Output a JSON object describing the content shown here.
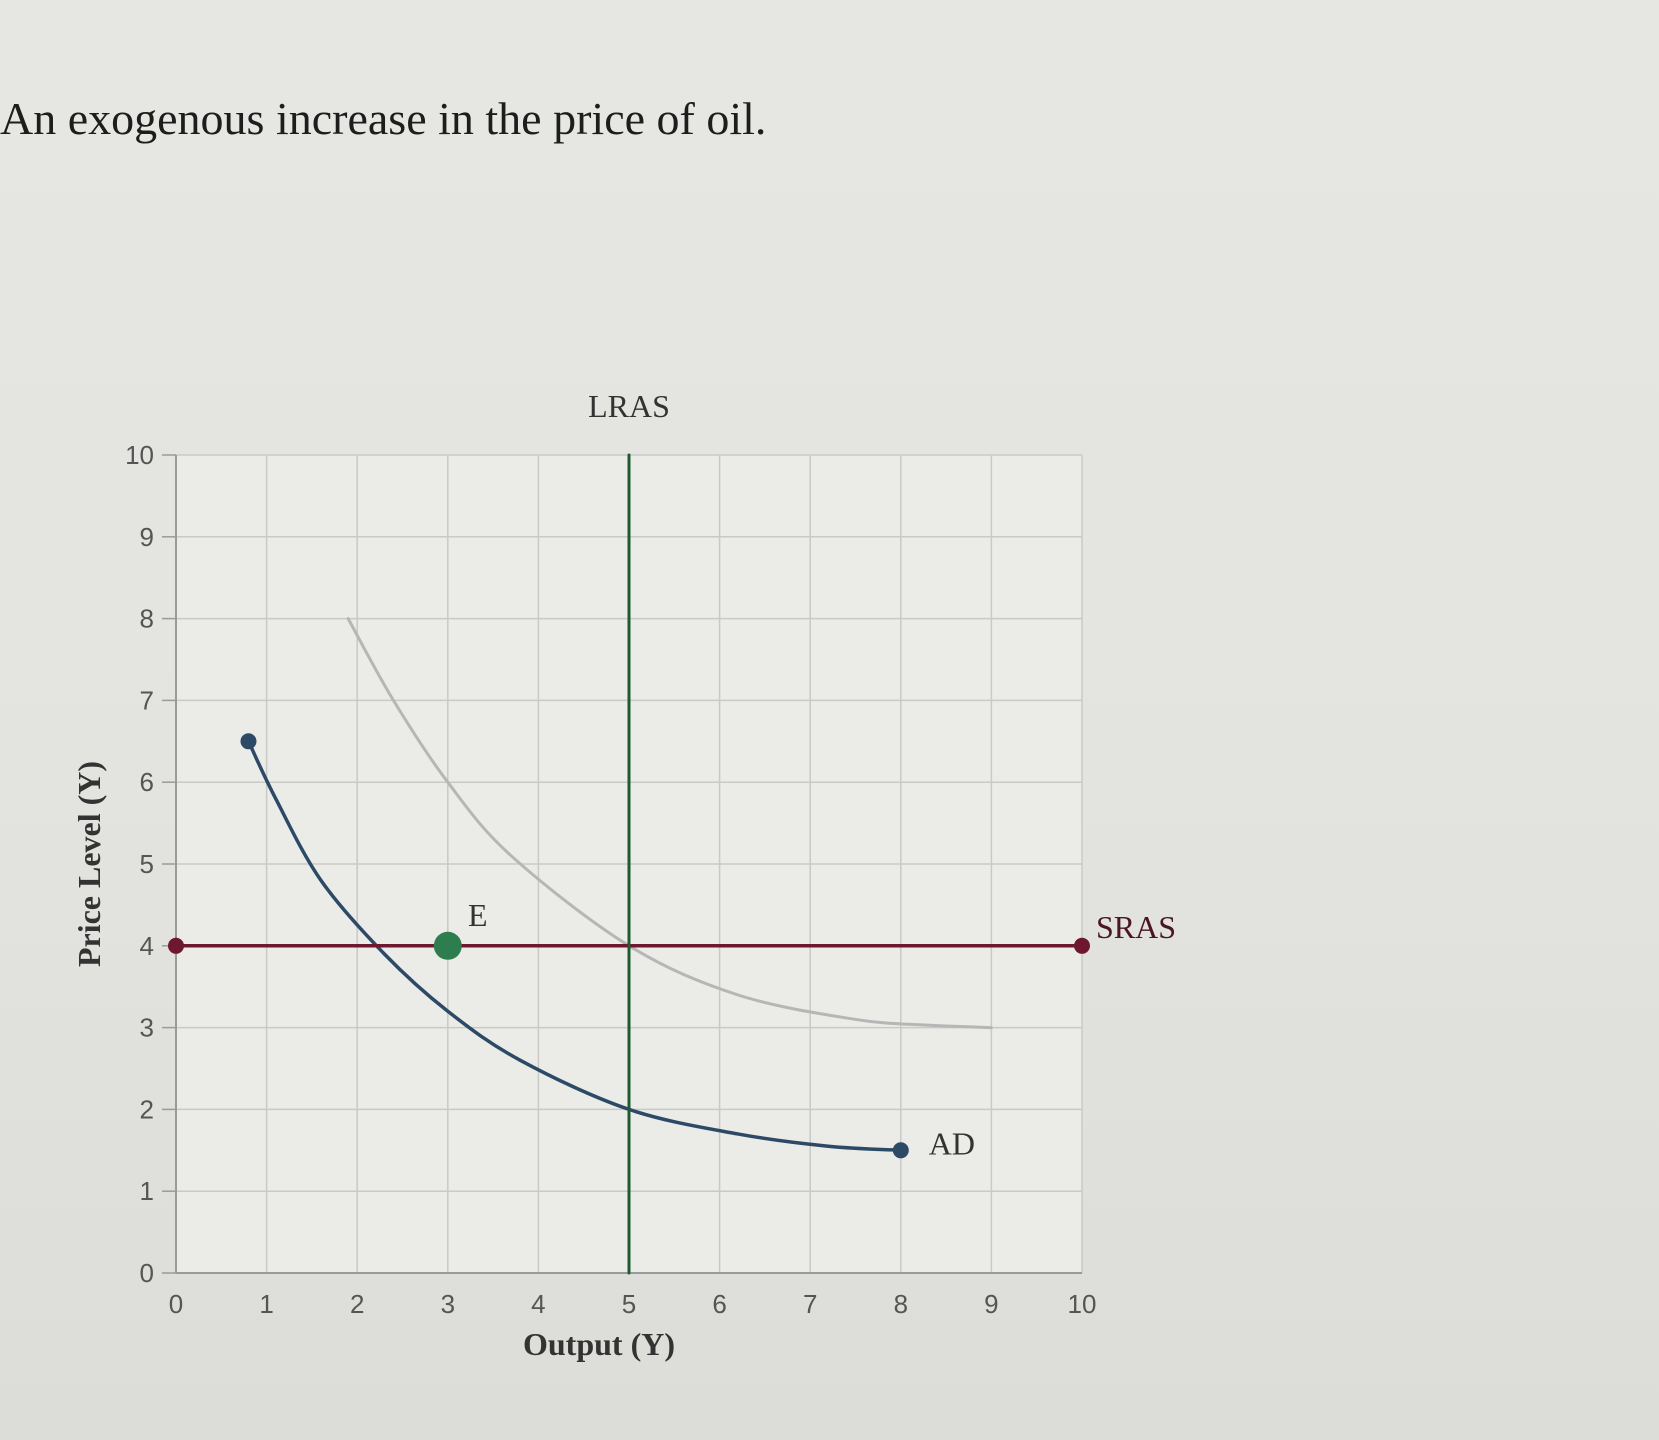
{
  "question": {
    "text": "An exogenous increase in the price of oil."
  },
  "chart_data": {
    "type": "line",
    "title": "",
    "xlabel": "Output (Y)",
    "ylabel": "Price Level (Y)",
    "xlim": [
      0,
      10
    ],
    "ylim": [
      0,
      10
    ],
    "x_ticks": [
      "0",
      "1",
      "2",
      "3",
      "4",
      "5",
      "6",
      "7",
      "8",
      "9",
      "10"
    ],
    "y_ticks": [
      "0",
      "1",
      "2",
      "3",
      "4",
      "5",
      "6",
      "7",
      "8",
      "9",
      "10"
    ],
    "grid": true,
    "series": [
      {
        "name": "AD",
        "color": "#2c4a66",
        "points": [
          [
            0.8,
            6.5
          ],
          [
            1.1,
            5.8
          ],
          [
            1.6,
            4.8
          ],
          [
            2.3,
            3.9
          ],
          [
            3.0,
            3.2
          ],
          [
            3.8,
            2.6
          ],
          [
            5.0,
            2.0
          ],
          [
            6.2,
            1.7
          ],
          [
            7.2,
            1.55
          ],
          [
            8.0,
            1.5
          ]
        ],
        "endpoints": [
          [
            0.8,
            6.5
          ],
          [
            8.0,
            1.5
          ]
        ]
      },
      {
        "name": "",
        "color": "#b6b6b6",
        "points": [
          [
            1.9,
            8.0
          ],
          [
            2.4,
            7.0
          ],
          [
            3.0,
            6.0
          ],
          [
            3.7,
            5.1
          ],
          [
            5.0,
            4.0
          ],
          [
            6.2,
            3.4
          ],
          [
            7.5,
            3.1
          ],
          [
            8.3,
            3.03
          ],
          [
            9.0,
            3.0
          ]
        ]
      },
      {
        "name": "SRAS",
        "color": "#6e1830",
        "points": [
          [
            0,
            4
          ],
          [
            10,
            4
          ]
        ],
        "endpoints": [
          [
            0,
            4
          ],
          [
            10,
            4
          ]
        ]
      },
      {
        "name": "LRAS",
        "color": "#1f5a32",
        "points": [
          [
            5,
            0
          ],
          [
            5,
            10
          ]
        ]
      }
    ],
    "annotations": [
      {
        "label": "E",
        "x": 3.0,
        "y": 4.0,
        "color": "#2e7d4f"
      }
    ]
  }
}
